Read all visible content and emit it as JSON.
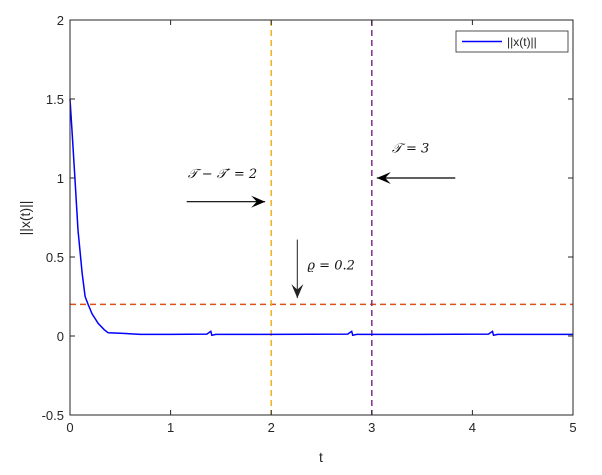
{
  "chart_data": {
    "type": "line",
    "xlabel": "t",
    "ylabel": "||x(t)||",
    "xlim": [
      0,
      5
    ],
    "ylim": [
      -0.5,
      2
    ],
    "xticks": [
      "0",
      "1",
      "2",
      "3",
      "4",
      "5"
    ],
    "yticks": [
      "-0.5",
      "0",
      "0.5",
      "1",
      "1.5",
      "2"
    ],
    "grid": false,
    "legend_position": "top-right",
    "series": [
      {
        "name": "||x(t)||",
        "color": "#0000ff",
        "x": [
          0,
          0.02,
          0.05,
          0.08,
          0.12,
          0.15,
          0.18,
          0.22,
          0.28,
          0.34,
          0.38,
          0.5,
          0.7,
          1.0,
          1.36,
          1.4,
          1.41,
          1.45,
          2.0,
          2.76,
          2.8,
          2.81,
          2.85,
          3.5,
          4.16,
          4.2,
          4.21,
          4.25,
          5.0
        ],
        "y": [
          1.5,
          1.3,
          0.99,
          0.67,
          0.4,
          0.25,
          0.2,
          0.14,
          0.08,
          0.04,
          0.02,
          0.018,
          0.01,
          0.01,
          0.012,
          0.03,
          0.005,
          0.01,
          0.01,
          0.012,
          0.03,
          0.005,
          0.01,
          0.01,
          0.012,
          0.03,
          0.005,
          0.01,
          0.01
        ]
      }
    ],
    "reference_lines": [
      {
        "orientation": "horizontal",
        "value": 0.2,
        "color": "#d95319",
        "style": "dashed"
      },
      {
        "orientation": "vertical",
        "value": 2,
        "color": "#edb120",
        "style": "dashed"
      },
      {
        "orientation": "vertical",
        "value": 3,
        "color": "#7e2f8e",
        "style": "dashed"
      }
    ],
    "annotations": [
      {
        "text": "𝒯 − 𝒯′ = 2",
        "arrow_from": [
          1.16,
          0.85
        ],
        "arrow_to": [
          1.94,
          0.85
        ],
        "text_at": [
          1.17,
          1.0
        ]
      },
      {
        "text": "𝒯 = 3",
        "arrow_from": [
          3.83,
          1.0
        ],
        "arrow_to": [
          3.05,
          1.0
        ],
        "text_at": [
          3.2,
          1.16
        ]
      },
      {
        "text": "ϱ = 0.2",
        "arrow_from": [
          2.26,
          0.61
        ],
        "arrow_to": [
          2.26,
          0.24
        ],
        "text_at": [
          2.36,
          0.42
        ]
      }
    ]
  }
}
